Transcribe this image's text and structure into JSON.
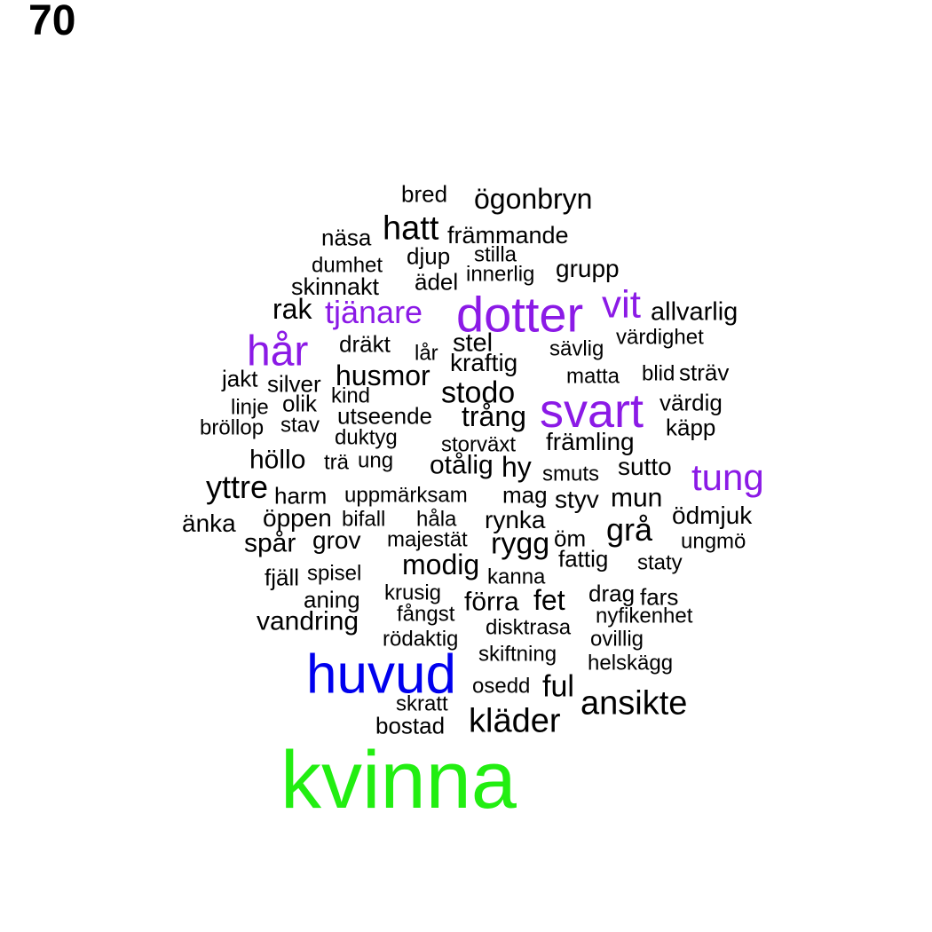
{
  "page_number": "70",
  "colors": {
    "default": "#000000",
    "purple": "#8b1ae6",
    "blue": "#0000ee",
    "green": "#22ee11"
  },
  "words": [
    {
      "text": "kvinna",
      "color": "green"
    },
    {
      "text": "huvud",
      "color": "blue"
    },
    {
      "text": "dotter",
      "color": "purple"
    },
    {
      "text": "svart",
      "color": "purple"
    },
    {
      "text": "hår",
      "color": "purple"
    },
    {
      "text": "tung",
      "color": "purple"
    },
    {
      "text": "vit",
      "color": "purple"
    },
    {
      "text": "tjänare",
      "color": "purple"
    },
    {
      "text": "bred"
    },
    {
      "text": "ögonbryn"
    },
    {
      "text": "näsa"
    },
    {
      "text": "hatt"
    },
    {
      "text": "främmande"
    },
    {
      "text": "djup"
    },
    {
      "text": "stilla"
    },
    {
      "text": "dumhet"
    },
    {
      "text": "innerlig"
    },
    {
      "text": "grupp"
    },
    {
      "text": "skinnakt"
    },
    {
      "text": "ädel"
    },
    {
      "text": "rak"
    },
    {
      "text": "allvarlig"
    },
    {
      "text": "dräkt"
    },
    {
      "text": "lår"
    },
    {
      "text": "stel"
    },
    {
      "text": "sävlig"
    },
    {
      "text": "värdighet"
    },
    {
      "text": "kraftig"
    },
    {
      "text": "jakt"
    },
    {
      "text": "husmor"
    },
    {
      "text": "matta"
    },
    {
      "text": "blid"
    },
    {
      "text": "sträv"
    },
    {
      "text": "silver"
    },
    {
      "text": "linje"
    },
    {
      "text": "kind"
    },
    {
      "text": "stodo"
    },
    {
      "text": "olik"
    },
    {
      "text": "värdig"
    },
    {
      "text": "bröllop"
    },
    {
      "text": "stav"
    },
    {
      "text": "utseende"
    },
    {
      "text": "trång"
    },
    {
      "text": "käpp"
    },
    {
      "text": "duktyg"
    },
    {
      "text": "storväxt"
    },
    {
      "text": "främling"
    },
    {
      "text": "höllo"
    },
    {
      "text": "trä"
    },
    {
      "text": "ung"
    },
    {
      "text": "otålig"
    },
    {
      "text": "hy"
    },
    {
      "text": "smuts"
    },
    {
      "text": "sutto"
    },
    {
      "text": "yttre"
    },
    {
      "text": "harm"
    },
    {
      "text": "uppmärksam"
    },
    {
      "text": "mag"
    },
    {
      "text": "styv"
    },
    {
      "text": "mun"
    },
    {
      "text": "ödmjuk"
    },
    {
      "text": "änka"
    },
    {
      "text": "öppen"
    },
    {
      "text": "bifall"
    },
    {
      "text": "håla"
    },
    {
      "text": "rynka"
    },
    {
      "text": "grå"
    },
    {
      "text": "spår"
    },
    {
      "text": "grov"
    },
    {
      "text": "majestät"
    },
    {
      "text": "rygg"
    },
    {
      "text": "öm"
    },
    {
      "text": "ungmö"
    },
    {
      "text": "fattig"
    },
    {
      "text": "staty"
    },
    {
      "text": "fjäll"
    },
    {
      "text": "spisel"
    },
    {
      "text": "modig"
    },
    {
      "text": "kanna"
    },
    {
      "text": "aning"
    },
    {
      "text": "krusig"
    },
    {
      "text": "förra"
    },
    {
      "text": "fet"
    },
    {
      "text": "drag"
    },
    {
      "text": "fars"
    },
    {
      "text": "fångst"
    },
    {
      "text": "nyfikenhet"
    },
    {
      "text": "vandring"
    },
    {
      "text": "disktrasa"
    },
    {
      "text": "rödaktig"
    },
    {
      "text": "ovillig"
    },
    {
      "text": "skiftning"
    },
    {
      "text": "helskägg"
    },
    {
      "text": "osedd"
    },
    {
      "text": "ful"
    },
    {
      "text": "skratt"
    },
    {
      "text": "ansikte"
    },
    {
      "text": "bostad"
    },
    {
      "text": "kläder"
    }
  ]
}
